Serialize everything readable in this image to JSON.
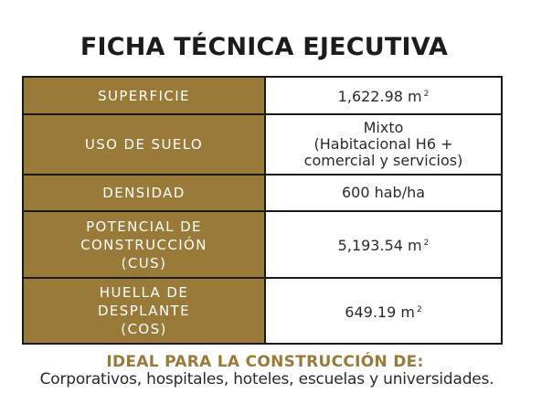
{
  "title": "FICHA TÉCNICA EJECUTIVA",
  "rows": [
    {
      "label": "SUPERFICIE",
      "value": "1,622.98 m",
      "sup": "2"
    },
    {
      "label": "USO DE SUELO",
      "value_lines": [
        "Mixto",
        "(Habitacional H6 +",
        "comercial y servicios)"
      ]
    },
    {
      "label": "DENSIDAD",
      "value": "600 hab/ha"
    },
    {
      "label_lines": [
        "POTENCIAL DE",
        "CONSTRUCCIÓN",
        "(CUS)"
      ],
      "value": "5,193.54 m",
      "sup": "2"
    },
    {
      "label_lines": [
        "HUELLA DE",
        "DESPLANTE",
        "(COS)"
      ],
      "value": "649.19 m",
      "sup": "2"
    }
  ],
  "ideal": {
    "heading": "IDEAL PARA LA CONSTRUCCIÓN DE:",
    "text": "Corporativos, hospitales, hoteles, escuelas y universidades."
  },
  "colors": {
    "gold": "#9a7a38",
    "border": "#1a1a1a",
    "text": "#2a2a2a"
  }
}
